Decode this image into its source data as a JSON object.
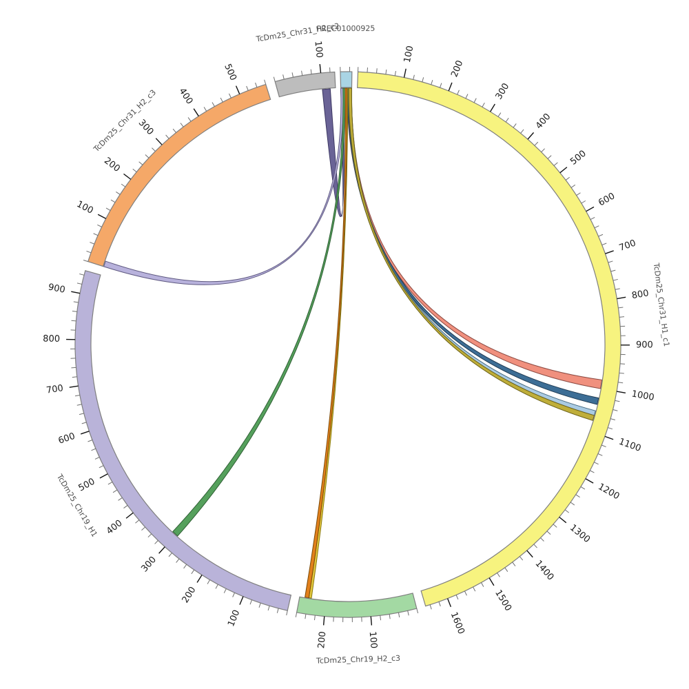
{
  "chart_data": {
    "type": "chord",
    "title": "",
    "subtitle": "",
    "legend": "none",
    "grid": false,
    "description": "Circos-style circular alignment plot: six sequence segments on a ring with tick scales; ribbon links connect a small top region (PREC01000925 / end of TcDm25_Chr31_H2_c2) to positions on the other segments.",
    "axis": {
      "minor_tick_interval": 20,
      "major_tick_interval": 100,
      "tick_label_every": 100,
      "tick_labels_visible": [
        "100",
        "200",
        "300",
        "400",
        "500",
        "600",
        "700",
        "800",
        "900",
        "1000",
        "1100",
        "1200",
        "1300",
        "1400",
        "1500",
        "1600"
      ]
    },
    "layout": {
      "deg_per_unit": 0.0978,
      "direction": "clockwise",
      "zero_angle": "top"
    },
    "segments": [
      {
        "id": "PREC01000925",
        "label": "PREC01000925",
        "length": 25,
        "start_deg": 358.4,
        "fill": "#A9D4E4"
      },
      {
        "id": "TcDm25_Chr31_H1_c1",
        "label": "TcDm25_Chr31_H1_c1",
        "length": 1650,
        "start_deg": 2.1,
        "fill": "#F7F37F"
      },
      {
        "id": "TcDm25_Chr19_H2_c3",
        "label": "TcDm25_Chr19_H2_c3",
        "length": 260,
        "start_deg": 165.4,
        "fill": "#A3D9A3"
      },
      {
        "id": "TcDm25_Chr19_H1",
        "label": "TcDm25_Chr19_H1",
        "length": 950,
        "start_deg": 192.8,
        "fill": "#B9B3D9"
      },
      {
        "id": "TcDm25_Chr31_H2_c3",
        "label": "TcDm25_Chr31_H2_c3",
        "length": 560,
        "start_deg": 287.7,
        "fill": "#F5A868"
      },
      {
        "id": "TcDm25_Chr31_H2_c2",
        "label": "TcDm25_Chr31_H2_c2",
        "length": 130,
        "start_deg": 344.5,
        "fill": "#BDBDBD"
      }
    ],
    "links": [
      {
        "name": "darkpurple",
        "source": {
          "segment": "TcDm25_Chr31_H2_c2",
          "start": 100,
          "end": 118
        },
        "target": {
          "segment": "PREC01000925",
          "start": 0,
          "end": 6
        },
        "fill": "#6A6396",
        "stroke": "#3A3560"
      },
      {
        "name": "lavender",
        "source": {
          "segment": "PREC01000925",
          "start": 0,
          "end": 6
        },
        "target": {
          "segment": "TcDm25_Chr31_H2_c3",
          "start": 0,
          "end": 13
        },
        "fill": "#B8B2DC",
        "stroke": "#5E5880"
      },
      {
        "name": "salmon",
        "source": {
          "segment": "PREC01000925",
          "start": 14,
          "end": 25
        },
        "target": {
          "segment": "TcDm25_Chr31_H1_c1",
          "start": 980,
          "end": 1000
        },
        "fill": "#F0907E",
        "stroke": "#8B4A42"
      },
      {
        "name": "darkblue",
        "source": {
          "segment": "PREC01000925",
          "start": 15,
          "end": 23
        },
        "target": {
          "segment": "TcDm25_Chr31_H1_c1",
          "start": 1022,
          "end": 1037
        },
        "fill": "#3D6E96",
        "stroke": "#1F3A52"
      },
      {
        "name": "lightblue",
        "source": {
          "segment": "PREC01000925",
          "start": 17,
          "end": 25
        },
        "target": {
          "segment": "TcDm25_Chr31_H1_c1",
          "start": 1052,
          "end": 1063
        },
        "fill": "#AACBE3",
        "stroke": "#44687F"
      },
      {
        "name": "olive",
        "source": {
          "segment": "PREC01000925",
          "start": 18,
          "end": 25
        },
        "target": {
          "segment": "TcDm25_Chr31_H1_c1",
          "start": 1063,
          "end": 1075
        },
        "fill": "#BFAE3A",
        "stroke": "#6B6118"
      },
      {
        "name": "green",
        "source": {
          "segment": "PREC01000925",
          "start": 5,
          "end": 10
        },
        "target": {
          "segment": "TcDm25_Chr19_H1",
          "start": 295,
          "end": 310
        },
        "fill": "#55A05C",
        "stroke": "#2F5F34"
      },
      {
        "name": "yellowlink",
        "source": {
          "segment": "PREC01000925",
          "start": 13,
          "end": 16
        },
        "target": {
          "segment": "TcDm25_Chr19_H2_c3",
          "start": 233,
          "end": 239
        },
        "fill": "#E2C63C",
        "stroke": "#8A7A10"
      },
      {
        "name": "orange",
        "source": {
          "segment": "PREC01000925",
          "start": 10,
          "end": 14
        },
        "target": {
          "segment": "TcDm25_Chr19_H2_c3",
          "start": 239,
          "end": 248
        },
        "fill": "#E2801C",
        "stroke": "#7A4A08"
      }
    ]
  }
}
